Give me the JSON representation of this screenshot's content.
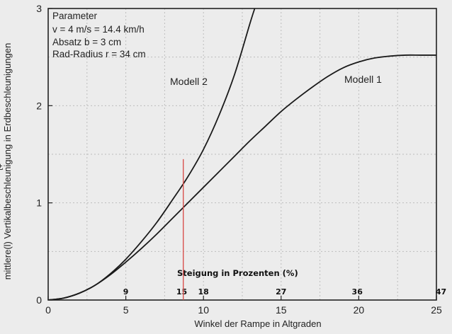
{
  "chart_data": {
    "type": "line",
    "xlabel": "Winkel der Rampe in Altgraden",
    "ylabel": "mittlere(l) Vertikalbeschleunigung in Erdbeschleunigungen",
    "ylabel_superscript": "t+",
    "xlim": [
      0,
      25
    ],
    "ylim": [
      0,
      3
    ],
    "x_ticks": [
      "0",
      "5",
      "10",
      "15",
      "20",
      "25"
    ],
    "y_ticks": [
      "0",
      "1",
      "2",
      "3"
    ],
    "grid": true,
    "parameters": {
      "heading": "Parameter",
      "lines": [
        "v = 4 m/s = 14.4 km/h",
        "Absatz b = 3 cm",
        "Rad-Radius r = 34 cm"
      ]
    },
    "series": [
      {
        "name": "Modell 1",
        "x": [
          0,
          1,
          2,
          3,
          4,
          5,
          6,
          7,
          8,
          9,
          10,
          11,
          12,
          13,
          14,
          15,
          16,
          17,
          18,
          19,
          20,
          21,
          22,
          23,
          24,
          25
        ],
        "y": [
          0,
          0.02,
          0.07,
          0.15,
          0.26,
          0.39,
          0.53,
          0.68,
          0.84,
          1.0,
          1.16,
          1.32,
          1.48,
          1.64,
          1.79,
          1.94,
          2.07,
          2.19,
          2.3,
          2.39,
          2.45,
          2.49,
          2.51,
          2.52,
          2.52,
          2.52
        ]
      },
      {
        "name": "Modell 2",
        "x": [
          0,
          1,
          2,
          3,
          4,
          5,
          6,
          7,
          8,
          9,
          10,
          11,
          12,
          13,
          13.3
        ],
        "y": [
          0,
          0.02,
          0.07,
          0.15,
          0.27,
          0.42,
          0.6,
          0.8,
          1.03,
          1.27,
          1.55,
          1.9,
          2.32,
          2.85,
          3.0
        ]
      }
    ],
    "marker_line": {
      "x": 8.7,
      "y_from": 0,
      "y_to": 1.45,
      "color": "#d9534f"
    },
    "percent_axis": {
      "title": "Steigung in Prozenten (%)",
      "marks": [
        {
          "label": "9",
          "x": 5.0
        },
        {
          "label": "15",
          "x": 8.6
        },
        {
          "label": "18",
          "x": 10.0
        },
        {
          "label": "27",
          "x": 15.0
        },
        {
          "label": "36",
          "x": 19.9
        },
        {
          "label": "47",
          "x": 25.3
        }
      ]
    }
  }
}
